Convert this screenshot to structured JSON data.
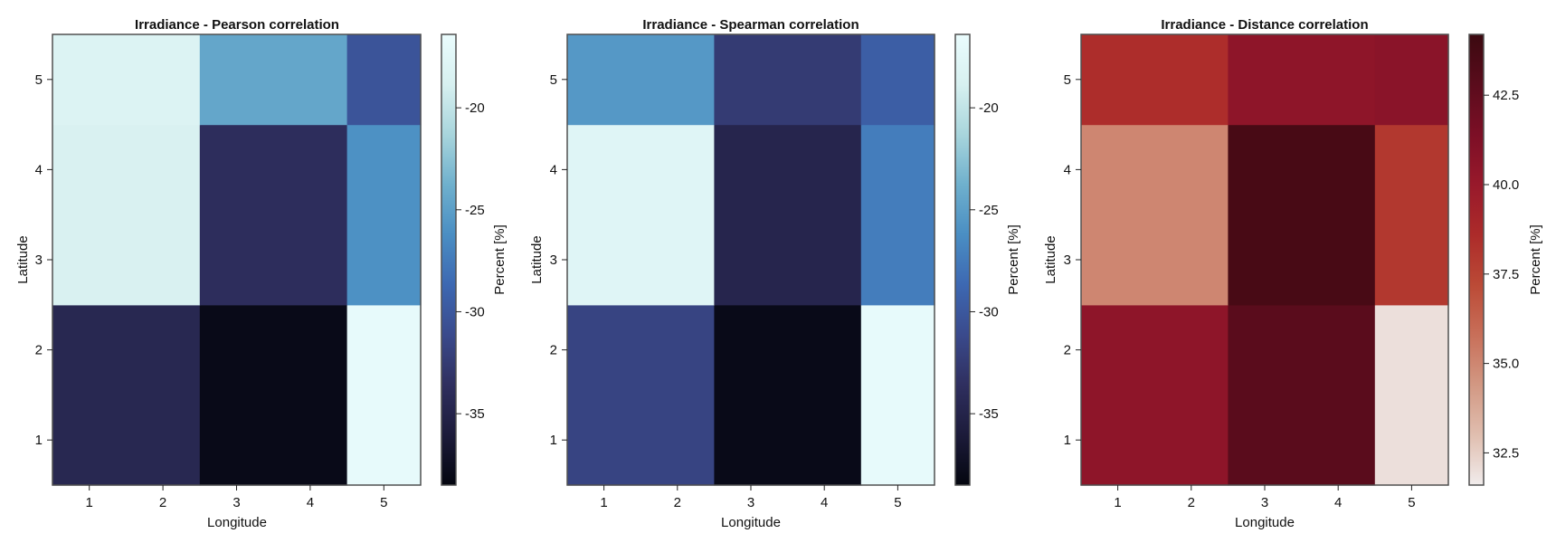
{
  "chart_data": [
    {
      "type": "heatmap",
      "title": "Irradiance - Pearson correlation",
      "xlabel": "Longitude",
      "ylabel": "Latitude",
      "x_ticks": [
        1,
        2,
        3,
        4,
        5
      ],
      "y_ticks": [
        1,
        2,
        3,
        4,
        5
      ],
      "cells": [
        {
          "x_range": [
            0.5,
            2.5
          ],
          "y_range": [
            0.5,
            2.5
          ],
          "value": -34.5
        },
        {
          "x_range": [
            2.5,
            4.5
          ],
          "y_range": [
            0.5,
            2.5
          ],
          "value": -38.0
        },
        {
          "x_range": [
            4.5,
            5.5
          ],
          "y_range": [
            0.5,
            2.5
          ],
          "value": -16.8
        },
        {
          "x_range": [
            0.5,
            2.5
          ],
          "y_range": [
            2.5,
            4.5
          ],
          "value": -18.6
        },
        {
          "x_range": [
            2.5,
            4.5
          ],
          "y_range": [
            2.5,
            4.5
          ],
          "value": -33.8
        },
        {
          "x_range": [
            4.5,
            5.5
          ],
          "y_range": [
            2.5,
            4.5
          ],
          "value": -26.0
        },
        {
          "x_range": [
            0.5,
            2.5
          ],
          "y_range": [
            4.5,
            5.5
          ],
          "value": -18.2
        },
        {
          "x_range": [
            2.5,
            4.5
          ],
          "y_range": [
            4.5,
            5.5
          ],
          "value": -24.5
        },
        {
          "x_range": [
            4.5,
            5.5
          ],
          "y_range": [
            4.5,
            5.5
          ],
          "value": -30.3
        }
      ],
      "colorbar": {
        "label": "Percent [%]",
        "range": [
          -38.5,
          -16.4
        ],
        "ticks": [
          -20,
          -25,
          -30,
          -35
        ],
        "tick_labels": [
          "-20",
          "-25",
          "-30",
          "-35"
        ],
        "colormap": "ice"
      }
    },
    {
      "type": "heatmap",
      "title": "Irradiance - Spearman correlation",
      "xlabel": "Longitude",
      "ylabel": "Latitude",
      "x_ticks": [
        1,
        2,
        3,
        4,
        5
      ],
      "y_ticks": [
        1,
        2,
        3,
        4,
        5
      ],
      "cells": [
        {
          "x_range": [
            0.5,
            2.5
          ],
          "y_range": [
            0.5,
            2.5
          ],
          "value": -31.7
        },
        {
          "x_range": [
            2.5,
            4.5
          ],
          "y_range": [
            0.5,
            2.5
          ],
          "value": -38.0
        },
        {
          "x_range": [
            4.5,
            5.5
          ],
          "y_range": [
            0.5,
            2.5
          ],
          "value": -16.8
        },
        {
          "x_range": [
            0.5,
            2.5
          ],
          "y_range": [
            2.5,
            4.5
          ],
          "value": -17.8
        },
        {
          "x_range": [
            2.5,
            4.5
          ],
          "y_range": [
            2.5,
            4.5
          ],
          "value": -34.8
        },
        {
          "x_range": [
            4.5,
            5.5
          ],
          "y_range": [
            2.5,
            4.5
          ],
          "value": -27.3
        },
        {
          "x_range": [
            0.5,
            2.5
          ],
          "y_range": [
            4.5,
            5.5
          ],
          "value": -25.5
        },
        {
          "x_range": [
            2.5,
            4.5
          ],
          "y_range": [
            4.5,
            5.5
          ],
          "value": -32.5
        },
        {
          "x_range": [
            4.5,
            5.5
          ],
          "y_range": [
            4.5,
            5.5
          ],
          "value": -29.5
        }
      ],
      "colorbar": {
        "label": "Percent [%]",
        "range": [
          -38.5,
          -16.4
        ],
        "ticks": [
          -20,
          -25,
          -30,
          -35
        ],
        "tick_labels": [
          "-20",
          "-25",
          "-30",
          "-35"
        ],
        "colormap": "ice"
      }
    },
    {
      "type": "heatmap",
      "title": "Irradiance - Distance correlation",
      "xlabel": "Longitude",
      "ylabel": "Latitude",
      "x_ticks": [
        1,
        2,
        3,
        4,
        5
      ],
      "y_ticks": [
        1,
        2,
        3,
        4,
        5
      ],
      "cells": [
        {
          "x_range": [
            0.5,
            2.5
          ],
          "y_range": [
            0.5,
            2.5
          ],
          "value": 40.5
        },
        {
          "x_range": [
            2.5,
            4.5
          ],
          "y_range": [
            0.5,
            2.5
          ],
          "value": 42.8
        },
        {
          "x_range": [
            4.5,
            5.5
          ],
          "y_range": [
            0.5,
            2.5
          ],
          "value": 32.0
        },
        {
          "x_range": [
            0.5,
            2.5
          ],
          "y_range": [
            2.5,
            4.5
          ],
          "value": 35.0
        },
        {
          "x_range": [
            2.5,
            4.5
          ],
          "y_range": [
            2.5,
            4.5
          ],
          "value": 43.6
        },
        {
          "x_range": [
            4.5,
            5.5
          ],
          "y_range": [
            2.5,
            4.5
          ],
          "value": 38.0
        },
        {
          "x_range": [
            0.5,
            2.5
          ],
          "y_range": [
            4.5,
            5.5
          ],
          "value": 38.5
        },
        {
          "x_range": [
            2.5,
            4.5
          ],
          "y_range": [
            4.5,
            5.5
          ],
          "value": 40.5
        },
        {
          "x_range": [
            4.5,
            5.5
          ],
          "y_range": [
            4.5,
            5.5
          ],
          "value": 40.7
        }
      ],
      "colorbar": {
        "label": "Percent [%]",
        "range": [
          31.6,
          44.2
        ],
        "ticks": [
          42.5,
          40.0,
          37.5,
          35.0,
          32.5
        ],
        "tick_labels": [
          "42.5",
          "40.0",
          "37.5",
          "35.0",
          "32.5"
        ],
        "colormap": "amp"
      }
    }
  ],
  "colormaps": {
    "ice": [
      "#04060f",
      "#1c1b3a",
      "#2f2f5f",
      "#3a4a8c",
      "#3d68b2",
      "#4a8ec3",
      "#6fb0cd",
      "#a8d5dc",
      "#d7f0f0",
      "#eafcfd"
    ],
    "amp": [
      "#f1ecec",
      "#e0beaf",
      "#d29883",
      "#c86f59",
      "#bb4a36",
      "#ac2b2a",
      "#98192b",
      "#7c0f26",
      "#5a0c1c",
      "#3b0910"
    ]
  },
  "colors": {
    "frame": "#505050",
    "tick": "#222222"
  }
}
